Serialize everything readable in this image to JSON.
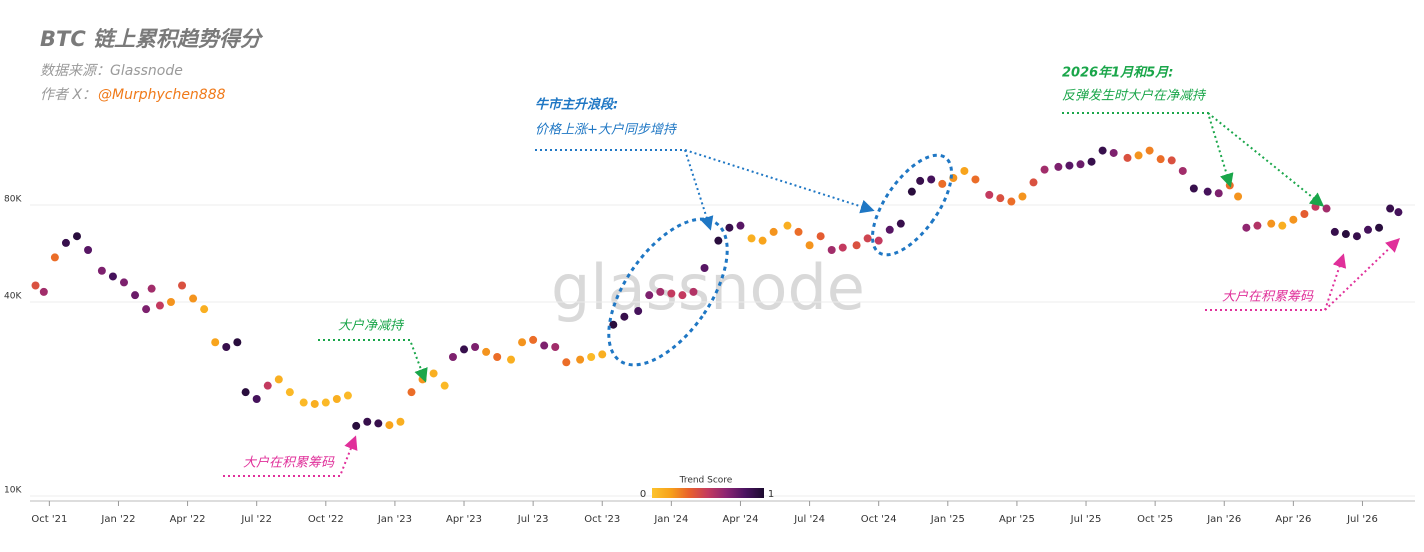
{
  "chart_data": {
    "type": "scatter",
    "title": "BTC 链上累积趋势得分",
    "source": "数据来源：Glassnode",
    "author_prefix": "作者 X：",
    "author": "@Murphychen888",
    "watermark": "glassnode",
    "x": [
      2021.7,
      2021.73,
      2021.77,
      2021.81,
      2021.85,
      2021.89,
      2021.94,
      2021.98,
      2022.02,
      2022.06,
      2022.1,
      2022.12,
      2022.15,
      2022.19,
      2022.23,
      2022.27,
      2022.31,
      2022.35,
      2022.39,
      2022.43,
      2022.46,
      2022.5,
      2022.54,
      2022.58,
      2022.62,
      2022.67,
      2022.71,
      2022.75,
      2022.79,
      2022.83,
      2022.86,
      2022.9,
      2022.94,
      2022.98,
      2023.02,
      2023.06,
      2023.1,
      2023.14,
      2023.18,
      2023.21,
      2023.25,
      2023.29,
      2023.33,
      2023.37,
      2023.42,
      2023.46,
      2023.5,
      2023.54,
      2023.58,
      2023.62,
      2023.67,
      2023.71,
      2023.75,
      2023.79,
      2023.83,
      2023.88,
      2023.92,
      2023.96,
      2024.0,
      2024.04,
      2024.08,
      2024.12,
      2024.17,
      2024.21,
      2024.25,
      2024.29,
      2024.33,
      2024.37,
      2024.42,
      2024.46,
      2024.5,
      2024.54,
      2024.58,
      2024.62,
      2024.67,
      2024.71,
      2024.75,
      2024.79,
      2024.83,
      2024.87,
      2024.9,
      2024.94,
      2024.98,
      2025.02,
      2025.06,
      2025.1,
      2025.15,
      2025.19,
      2025.23,
      2025.27,
      2025.31,
      2025.35,
      2025.4,
      2025.44,
      2025.48,
      2025.52,
      2025.56,
      2025.6,
      2025.65,
      2025.69,
      2025.73,
      2025.77,
      2025.81,
      2025.85,
      2025.89,
      2025.94,
      2025.98,
      2026.02,
      2026.05,
      2026.08,
      2026.12,
      2026.17,
      2026.21,
      2026.25,
      2026.29,
      2026.33,
      2026.37,
      2026.4,
      2026.44,
      2026.48,
      2026.52,
      2026.56,
      2026.6,
      2026.63
    ],
    "values": [
      45000,
      43000,
      55000,
      61000,
      64000,
      58000,
      50000,
      48000,
      46000,
      42000,
      38000,
      44000,
      39000,
      40000,
      45000,
      41000,
      38000,
      30000,
      29000,
      30000,
      21000,
      20000,
      22000,
      23000,
      21000,
      19500,
      19300,
      19500,
      20000,
      20500,
      16500,
      17000,
      16800,
      16600,
      17000,
      21000,
      23000,
      24000,
      22000,
      27000,
      28500,
      29000,
      28000,
      27000,
      26500,
      30000,
      30500,
      29300,
      29000,
      26000,
      26500,
      27000,
      27500,
      34000,
      36000,
      37500,
      42000,
      43000,
      42500,
      42000,
      43000,
      51000,
      62000,
      68000,
      69000,
      63000,
      62000,
      66000,
      69000,
      66000,
      60000,
      64000,
      58000,
      59000,
      60000,
      63000,
      62000,
      67000,
      70000,
      88000,
      95000,
      96000,
      93000,
      97000,
      102000,
      96000,
      86000,
      84000,
      82000,
      85000,
      94000,
      103000,
      105000,
      106000,
      107000,
      109000,
      118000,
      116000,
      112000,
      114000,
      118000,
      111000,
      110000,
      102000,
      90000,
      88000,
      87000,
      92000,
      85000,
      68000,
      69000,
      70000,
      69000,
      72000,
      75000,
      79000,
      78000,
      66000,
      65000,
      64000,
      67000,
      68000,
      78000,
      76000
    ],
    "trend_score": [
      0.4,
      0.6,
      0.3,
      0.9,
      0.95,
      0.8,
      0.7,
      0.85,
      0.7,
      0.75,
      0.7,
      0.6,
      0.5,
      0.2,
      0.4,
      0.2,
      0.1,
      0.15,
      0.9,
      0.95,
      0.95,
      0.85,
      0.5,
      0.1,
      0.05,
      0.05,
      0.1,
      0.05,
      0.1,
      0.05,
      0.95,
      0.9,
      0.9,
      0.15,
      0.1,
      0.3,
      0.2,
      0.1,
      0.05,
      0.7,
      0.9,
      0.7,
      0.2,
      0.3,
      0.1,
      0.2,
      0.3,
      0.7,
      0.6,
      0.3,
      0.2,
      0.05,
      0.1,
      0.95,
      0.9,
      0.85,
      0.7,
      0.6,
      0.5,
      0.5,
      0.55,
      0.8,
      0.95,
      0.9,
      0.8,
      0.1,
      0.15,
      0.2,
      0.1,
      0.3,
      0.2,
      0.35,
      0.6,
      0.5,
      0.4,
      0.45,
      0.5,
      0.8,
      0.9,
      0.95,
      0.9,
      0.85,
      0.3,
      0.2,
      0.15,
      0.3,
      0.5,
      0.4,
      0.3,
      0.2,
      0.4,
      0.6,
      0.7,
      0.8,
      0.75,
      0.9,
      0.9,
      0.7,
      0.4,
      0.2,
      0.25,
      0.3,
      0.4,
      0.6,
      0.9,
      0.85,
      0.7,
      0.3,
      0.2,
      0.65,
      0.55,
      0.2,
      0.1,
      0.2,
      0.35,
      0.5,
      0.6,
      0.9,
      0.95,
      0.9,
      0.85,
      0.95,
      0.9,
      0.85
    ],
    "colorscale": [
      "#fcc32c",
      "#f7a11a",
      "#e8602c",
      "#c33a5f",
      "#8a2472",
      "#4a1360",
      "#1b0a2e"
    ],
    "colorbar": {
      "title": "Trend Score",
      "min": 0,
      "max": 1
    },
    "log_scale_y": true,
    "grid": true,
    "xlim": [
      2021.68,
      2026.69
    ],
    "ylim": [
      10000,
      300000
    ],
    "xticks": [
      {
        "value": 2021.75,
        "label": "Oct '21"
      },
      {
        "value": 2022.0,
        "label": "Jan '22"
      },
      {
        "value": 2022.25,
        "label": "Apr '22"
      },
      {
        "value": 2022.5,
        "label": "Jul '22"
      },
      {
        "value": 2022.75,
        "label": "Oct '22"
      },
      {
        "value": 2023.0,
        "label": "Jan '23"
      },
      {
        "value": 2023.25,
        "label": "Apr '23"
      },
      {
        "value": 2023.5,
        "label": "Jul '23"
      },
      {
        "value": 2023.75,
        "label": "Oct '23"
      },
      {
        "value": 2024.0,
        "label": "Jan '24"
      },
      {
        "value": 2024.25,
        "label": "Apr '24"
      },
      {
        "value": 2024.5,
        "label": "Jul '24"
      },
      {
        "value": 2024.75,
        "label": "Oct '24"
      },
      {
        "value": 2025.0,
        "label": "Jan '25"
      },
      {
        "value": 2025.25,
        "label": "Apr '25"
      },
      {
        "value": 2025.5,
        "label": "Jul '25"
      },
      {
        "value": 2025.75,
        "label": "Oct '25"
      },
      {
        "value": 2026.0,
        "label": "Jan '26"
      },
      {
        "value": 2026.25,
        "label": "Apr '26"
      },
      {
        "value": 2026.5,
        "label": "Jul '26"
      }
    ],
    "yticks": [
      {
        "value": 10000,
        "label": "10K"
      },
      {
        "value": 40000,
        "label": "40K"
      },
      {
        "value": 80000,
        "label": "80K"
      }
    ],
    "annotations": [
      {
        "title": "牛市主升浪段:",
        "text": "价格上涨+大户同步增持",
        "color": "#1f77c4"
      },
      {
        "title": "2026年1月和5月:",
        "text": "反弹发生时大户在净减持",
        "color": "#1aa64a"
      },
      {
        "text": "大户净减持",
        "color": "#1aa64a"
      },
      {
        "text": "大户在积累筹码",
        "color": "#e0309a"
      },
      {
        "text": "大户在积累筹码",
        "color": "#e0309a"
      }
    ]
  }
}
